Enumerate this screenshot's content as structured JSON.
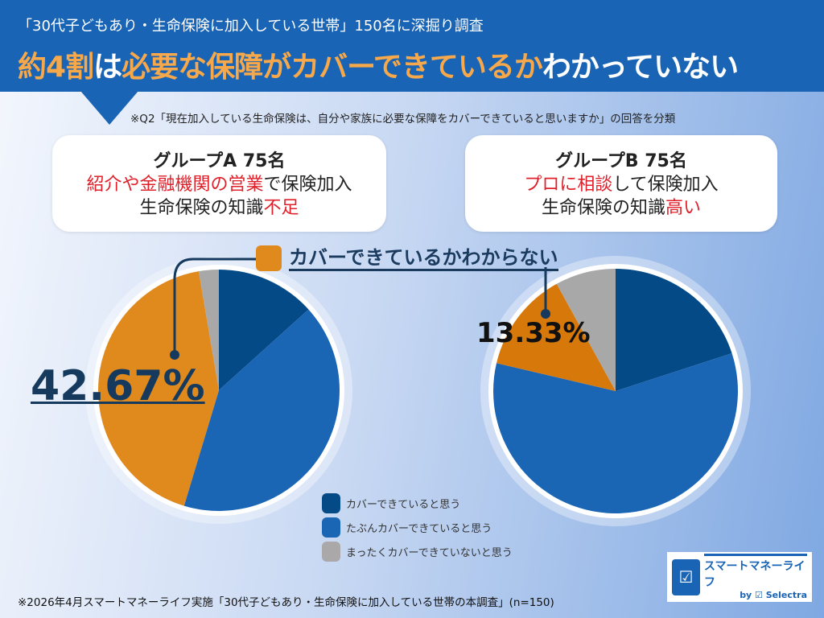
{
  "header": {
    "subtitle": "「30代子どもあり・生命保険に加入している世帯」150名に深掘り調査",
    "title_parts": [
      "約4割",
      "は",
      "必要な保障がカバーできているか",
      "わかっていない"
    ]
  },
  "note": "※Q2「現在加入している生命保険は、自分や家族に必要な保障をカバーできていると思いますか」の回答を分類",
  "groupA": {
    "heading": "グループA 75名",
    "line1_red": "紹介や金融機関の営業",
    "line1_rest": "で保険加入",
    "line2_rest": "生命保険の知識",
    "line2_red": "不足"
  },
  "groupB": {
    "heading": "グループB 75名",
    "line1_red": "プロに相談",
    "line1_rest": "して保険加入",
    "line2_rest": "生命保険の知識",
    "line2_red": "高い"
  },
  "callout": {
    "label": "カバーできているかわからない",
    "pctA": "42.67%",
    "pctB": "13.33%"
  },
  "legend": [
    "カバーできていると思う",
    "たぶんカバーできていると思う",
    "まったくカバーできていないと思う"
  ],
  "footer": "※2026年4月スマートマネーライフ実施「30代子どもあり・生命保険に加入している世帯の本調査」(n=150)",
  "logo": {
    "name": "スマートマネーライフ",
    "by": "by ☑ Selectra"
  },
  "colors": {
    "covered": "#034a87",
    "maybe": "#1a66b5",
    "unknown": "#d7780a",
    "not": "#a8a8a8",
    "accent": "#f6a84a",
    "header": "#1964b5"
  },
  "chart_data": [
    {
      "type": "pie",
      "name": "グループA 75名",
      "categories": [
        "カバーできていると思う",
        "たぶんカバーできていると思う",
        "カバーできているかわからない",
        "まったくカバーできていないと思う"
      ],
      "values": [
        13.33,
        41.33,
        42.67,
        2.67
      ],
      "colors": [
        "#034a87",
        "#1a66b5",
        "#e08a1e",
        "#a8a8a8"
      ]
    },
    {
      "type": "pie",
      "name": "グループB 75名",
      "categories": [
        "カバーできていると思う",
        "たぶんカバーできていると思う",
        "カバーできているかわからない",
        "まったくカバーできていないと思う"
      ],
      "values": [
        20.0,
        58.67,
        13.33,
        8.0
      ],
      "colors": [
        "#034a87",
        "#1a66b5",
        "#d7780a",
        "#a8a8a8"
      ]
    }
  ]
}
